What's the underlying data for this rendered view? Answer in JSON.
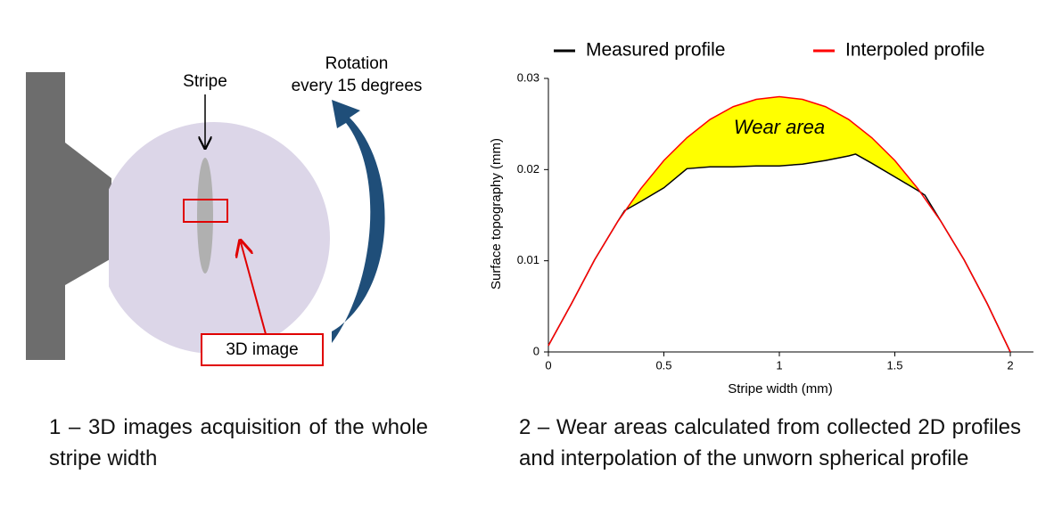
{
  "diagram": {
    "stripe_label": "Stripe",
    "rotation_label": [
      "Rotation",
      "every 15 degrees"
    ],
    "image_label": "3D image"
  },
  "chart_data": {
    "type": "line",
    "x_label": "Stripe width (mm)",
    "y_label": "Surface topography  (mm)",
    "annotation": "Wear area",
    "xlim": [
      0,
      2.1
    ],
    "xticks": [
      0,
      0.5,
      1,
      1.5,
      2
    ],
    "ylim": [
      0,
      0.03
    ],
    "yticks": [
      0,
      0.01,
      0.02,
      0.03
    ],
    "fill_color": "#ffff00",
    "series": [
      {
        "name": "Measured profile",
        "color": "#000000",
        "x": [
          0,
          0.1,
          0.2,
          0.3,
          0.33,
          0.4,
          0.5,
          0.6,
          0.7,
          0.8,
          0.9,
          1,
          1.1,
          1.2,
          1.3,
          1.33,
          1.4,
          1.5,
          1.6,
          1.63,
          1.7,
          1.8,
          1.9,
          2
        ],
        "values": [
          0.0007,
          0.0053,
          0.0101,
          0.0143,
          0.0155,
          0.0165,
          0.018,
          0.0201,
          0.0203,
          0.0203,
          0.0204,
          0.0204,
          0.0206,
          0.021,
          0.0215,
          0.0217,
          0.0207,
          0.0192,
          0.0177,
          0.0172,
          0.0143,
          0.0101,
          0.0053,
          0
        ]
      },
      {
        "name": "Interpoled profile",
        "color": "#ff0000",
        "x": [
          0,
          0.1,
          0.2,
          0.3,
          0.4,
          0.5,
          0.6,
          0.7,
          0.8,
          0.9,
          1,
          1.1,
          1.2,
          1.3,
          1.4,
          1.5,
          1.6,
          1.7,
          1.8,
          1.9,
          2
        ],
        "values": [
          0.0007,
          0.0053,
          0.0101,
          0.0143,
          0.0179,
          0.021,
          0.0235,
          0.0255,
          0.0269,
          0.0277,
          0.028,
          0.0277,
          0.0269,
          0.0255,
          0.0235,
          0.021,
          0.0179,
          0.0143,
          0.0101,
          0.0053,
          0
        ]
      }
    ]
  },
  "captions": [
    "1 – 3D images acquisition of the whole stripe width",
    "2 – Wear areas calculated from collected 2D profiles and interpolation of the unworn spherical profile"
  ]
}
